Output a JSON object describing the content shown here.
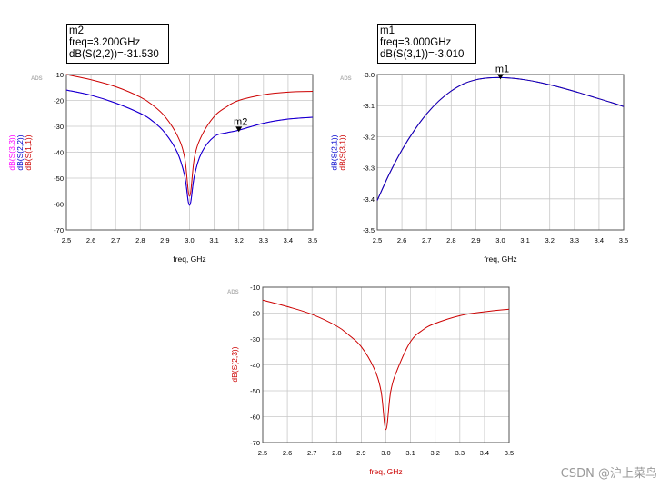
{
  "markers": {
    "m2": {
      "name": "m2",
      "freq": "freq=3.200GHz",
      "value": "dB(S(2,2))=-31.530"
    },
    "m1": {
      "name": "m1",
      "freq": "freq=3.000GHz",
      "value": "dB(S(3,1))=-3.010"
    }
  },
  "watermark": "CSDN @沪上菜鸟",
  "chart_data": [
    {
      "type": "line",
      "id": "left",
      "brand": "ADS",
      "xlabel": "freq, GHz",
      "xlim": [
        2.5,
        3.5
      ],
      "ylim": [
        -70,
        -10
      ],
      "xticks": [
        "2.5",
        "2.6",
        "2.7",
        "2.8",
        "2.9",
        "3.0",
        "3.1",
        "3.2",
        "3.3",
        "3.4",
        "3.5"
      ],
      "yticks": [
        "-10",
        "-20",
        "-30",
        "-40",
        "-50",
        "-60",
        "-70"
      ],
      "ylabels": [
        {
          "text": "dB(S(3,3))",
          "color": "#ff00ff"
        },
        {
          "text": "dB(S(2,2))",
          "color": "#0000cc"
        },
        {
          "text": "dB(S(1,1))",
          "color": "#cc0000"
        }
      ],
      "series": [
        {
          "name": "dB(S(1,1))",
          "color": "#cc0000",
          "x": [
            2.5,
            2.6,
            2.7,
            2.8,
            2.85,
            2.9,
            2.95,
            2.98,
            3.0,
            3.02,
            3.05,
            3.1,
            3.15,
            3.2,
            3.3,
            3.4,
            3.5
          ],
          "y": [
            -10.0,
            -12.0,
            -14.7,
            -18.7,
            -21.8,
            -26.2,
            -33.5,
            -42,
            -57,
            -42,
            -33.5,
            -26.2,
            -22.5,
            -20.0,
            -17.8,
            -16.8,
            -16.5
          ]
        },
        {
          "name": "dB(S(2,2))",
          "color": "#0000cc",
          "x": [
            2.5,
            2.6,
            2.7,
            2.8,
            2.85,
            2.9,
            2.95,
            2.98,
            3.0,
            3.02,
            3.05,
            3.1,
            3.15,
            3.2,
            3.3,
            3.4,
            3.5
          ],
          "y": [
            -16.0,
            -18.0,
            -21.0,
            -25.0,
            -28.0,
            -32.5,
            -40.0,
            -49,
            -60.5,
            -49,
            -40.0,
            -34.0,
            -32.5,
            -31.5,
            -28.8,
            -27.2,
            -26.5
          ]
        },
        {
          "name": "dB(S(3,3))",
          "color": "#ff00ff",
          "x": [
            2.5,
            2.6,
            2.7,
            2.8,
            2.85,
            2.9,
            2.95,
            2.98,
            3.0,
            3.02,
            3.05,
            3.1,
            3.15,
            3.2,
            3.3,
            3.4,
            3.5
          ],
          "y": [
            -16.0,
            -18.0,
            -21.0,
            -25.0,
            -28.0,
            -32.5,
            -40.0,
            -49,
            -60.5,
            -49,
            -40.0,
            -34.0,
            -32.5,
            -31.5,
            -28.8,
            -27.2,
            -26.5
          ]
        }
      ],
      "marker": {
        "label": "m2",
        "x": 3.2,
        "y": -31.53
      }
    },
    {
      "type": "line",
      "id": "right",
      "brand": "ADS",
      "xlabel": "freq, GHz",
      "xlim": [
        2.5,
        3.5
      ],
      "ylim": [
        -3.5,
        -3.0
      ],
      "xticks": [
        "2.5",
        "2.6",
        "2.7",
        "2.8",
        "2.9",
        "3.0",
        "3.1",
        "3.2",
        "3.3",
        "3.4",
        "3.5"
      ],
      "yticks": [
        "-3.0",
        "-3.1",
        "-3.2",
        "-3.3",
        "-3.4",
        "-3.5"
      ],
      "ylabels": [
        {
          "text": "dB(S(2,1))",
          "color": "#0000cc"
        },
        {
          "text": "dB(S(3,1))",
          "color": "#cc0000"
        }
      ],
      "series": [
        {
          "name": "dB(S(2,1))",
          "color": "#0000cc",
          "x": [
            2.5,
            2.55,
            2.6,
            2.65,
            2.7,
            2.75,
            2.8,
            2.85,
            2.9,
            2.95,
            3.0,
            3.05,
            3.1,
            3.15,
            3.2,
            3.25,
            3.3,
            3.35,
            3.4,
            3.45,
            3.5
          ],
          "y": [
            -3.405,
            -3.318,
            -3.243,
            -3.18,
            -3.127,
            -3.085,
            -3.053,
            -3.03,
            -3.017,
            -3.011,
            -3.01,
            -3.012,
            -3.017,
            -3.024,
            -3.033,
            -3.043,
            -3.054,
            -3.066,
            -3.078,
            -3.09,
            -3.103
          ]
        },
        {
          "name": "dB(S(3,1))",
          "color": "#cc0000",
          "x": [
            2.5,
            2.55,
            2.6,
            2.65,
            2.7,
            2.75,
            2.8,
            2.85,
            2.9,
            2.95,
            3.0,
            3.05,
            3.1,
            3.15,
            3.2,
            3.25,
            3.3,
            3.35,
            3.4,
            3.45,
            3.5
          ],
          "y": [
            -3.405,
            -3.318,
            -3.243,
            -3.18,
            -3.127,
            -3.085,
            -3.053,
            -3.03,
            -3.017,
            -3.011,
            -3.01,
            -3.012,
            -3.017,
            -3.024,
            -3.033,
            -3.043,
            -3.054,
            -3.066,
            -3.078,
            -3.09,
            -3.103
          ]
        }
      ],
      "marker": {
        "label": "m1",
        "x": 3.0,
        "y": -3.01
      }
    },
    {
      "type": "line",
      "id": "bottom",
      "brand": "ADS",
      "xlabel": "freq, GHz",
      "xlim": [
        2.5,
        3.5
      ],
      "ylim": [
        -70,
        -10
      ],
      "xticks": [
        "2.5",
        "2.6",
        "2.7",
        "2.8",
        "2.9",
        "3.0",
        "3.1",
        "3.2",
        "3.3",
        "3.4",
        "3.5"
      ],
      "yticks": [
        "-10",
        "-20",
        "-30",
        "-40",
        "-50",
        "-60",
        "-70"
      ],
      "ylabels": [
        {
          "text": "dB(S(2,3))",
          "color": "#cc0000"
        }
      ],
      "series": [
        {
          "name": "dB(S(2,3))",
          "color": "#cc0000",
          "x": [
            2.5,
            2.6,
            2.7,
            2.8,
            2.85,
            2.9,
            2.95,
            2.98,
            3.0,
            3.02,
            3.05,
            3.1,
            3.15,
            3.2,
            3.3,
            3.4,
            3.5
          ],
          "y": [
            -15.0,
            -17.5,
            -20.5,
            -25.0,
            -28.5,
            -33.0,
            -41.0,
            -50,
            -65.0,
            -50,
            -41.0,
            -31.0,
            -26.5,
            -24.0,
            -21.0,
            -19.5,
            -18.5
          ]
        }
      ]
    }
  ]
}
